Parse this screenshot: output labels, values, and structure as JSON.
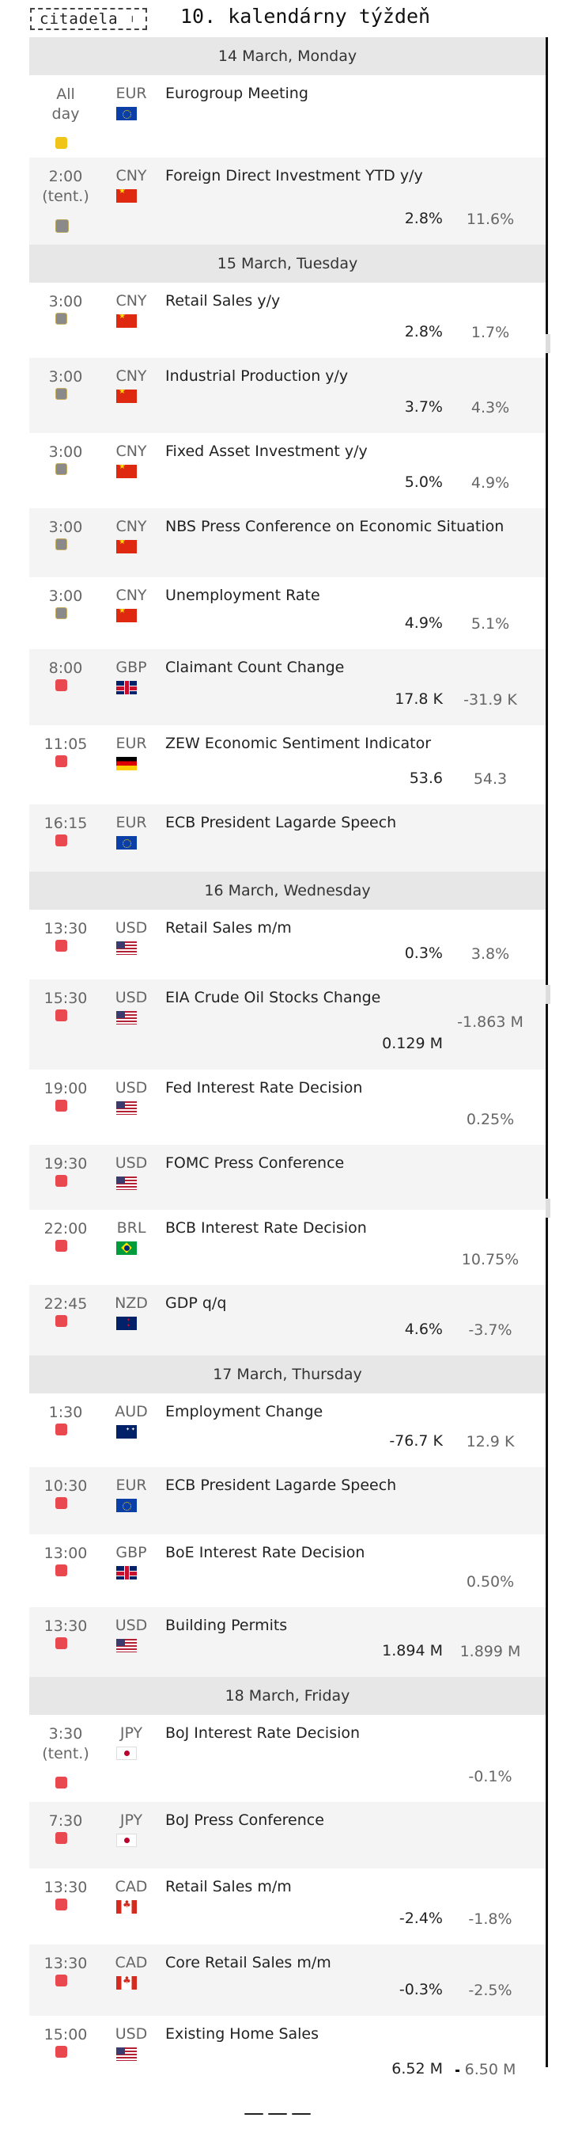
{
  "header": {
    "logo_text": "citadela",
    "logo_marks": "╷\n╵",
    "week_title": "10. kalendárny týždeň"
  },
  "colors": {
    "high": "#e8484e",
    "medium": "#8a8a8a",
    "holiday": "#f0c419",
    "header_bg": "#e7e7e7"
  },
  "days": [
    {
      "label": "14 March, Monday",
      "events": [
        {
          "time": "All day",
          "currency": "EUR",
          "flag": "f-eu",
          "name": "Eurogroup Meeting",
          "actual": "",
          "previous": "",
          "importance": "low",
          "h": 104
        },
        {
          "time": "2:00 (tent.)",
          "currency": "CNY",
          "flag": "f-cn",
          "name": "Foreign Direct Investment YTD y/y",
          "actual": "2.8%",
          "previous": "11.6%",
          "importance": "grey",
          "h": 110
        }
      ]
    },
    {
      "label": "15 March, Tuesday",
      "events": [
        {
          "time": "3:00",
          "currency": "CNY",
          "flag": "f-cn",
          "name": "Retail Sales y/y",
          "actual": "2.8%",
          "previous": "1.7%",
          "importance": "mid",
          "h": 95
        },
        {
          "time": "3:00",
          "currency": "CNY",
          "flag": "f-cn",
          "name": "Industrial Production y/y",
          "actual": "3.7%",
          "previous": "4.3%",
          "importance": "mid",
          "h": 95
        },
        {
          "time": "3:00",
          "currency": "CNY",
          "flag": "f-cn",
          "name": "Fixed Asset Investment y/y",
          "actual": "5.0%",
          "previous": "4.9%",
          "importance": "mid",
          "h": 95
        },
        {
          "time": "3:00",
          "currency": "CNY",
          "flag": "f-cn",
          "name": "NBS Press Conference on Economic Situation",
          "actual": "",
          "previous": "",
          "importance": "mid",
          "h": 87
        },
        {
          "time": "3:00",
          "currency": "CNY",
          "flag": "f-cn",
          "name": "Unemployment Rate",
          "actual": "4.9%",
          "previous": "5.1%",
          "importance": "mid",
          "h": 91
        },
        {
          "time": "8:00",
          "currency": "GBP",
          "flag": "f-gb",
          "name": "Claimant Count Change",
          "actual": "17.8 K",
          "previous": "-31.9 K",
          "importance": "high",
          "h": 96
        },
        {
          "time": "11:05",
          "currency": "EUR",
          "flag": "f-de",
          "name": "ZEW Economic Sentiment Indicator",
          "actual": "53.6",
          "previous": "54.3",
          "importance": "high",
          "h": 100
        },
        {
          "time": "16:15",
          "currency": "EUR",
          "flag": "f-eu",
          "name": "ECB President Lagarde Speech",
          "actual": "",
          "previous": "",
          "importance": "high",
          "h": 85
        }
      ]
    },
    {
      "label": "16 March, Wednesday",
      "events": [
        {
          "time": "13:30",
          "currency": "USD",
          "flag": "f-us",
          "name": "Retail Sales m/m",
          "actual": "0.3%",
          "previous": "3.8%",
          "importance": "high",
          "h": 88
        },
        {
          "time": "15:30",
          "currency": "USD",
          "flag": "f-us",
          "name": "EIA Crude Oil Stocks Change",
          "actual": "0.129 M",
          "previous": "-1.863 M",
          "importance": "high",
          "h": 114
        },
        {
          "time": "19:00",
          "currency": "USD",
          "flag": "f-us",
          "name": "Fed Interest Rate Decision",
          "actual": "",
          "previous": "0.25%",
          "importance": "high",
          "h": 95
        },
        {
          "time": "19:30",
          "currency": "USD",
          "flag": "f-us",
          "name": "FOMC Press Conference",
          "actual": "",
          "previous": "",
          "importance": "high",
          "h": 82
        },
        {
          "time": "22:00",
          "currency": "BRL",
          "flag": "f-br",
          "name": "BCB Interest Rate Decision",
          "actual": "",
          "previous": "10.75%",
          "importance": "high",
          "h": 95
        },
        {
          "time": "22:45",
          "currency": "NZD",
          "flag": "f-nz",
          "name": "GDP q/q",
          "actual": "4.6%",
          "previous": "-3.7%",
          "importance": "high",
          "h": 89
        }
      ]
    },
    {
      "label": "17 March, Thursday",
      "events": [
        {
          "time": "1:30",
          "currency": "AUD",
          "flag": "f-au",
          "name": "Employment Change",
          "actual": "-76.7 K",
          "previous": "12.9 K",
          "importance": "high",
          "h": 93
        },
        {
          "time": "10:30",
          "currency": "EUR",
          "flag": "f-eu",
          "name": "ECB President Lagarde Speech",
          "actual": "",
          "previous": "",
          "importance": "high",
          "h": 85
        },
        {
          "time": "13:00",
          "currency": "GBP",
          "flag": "f-gb",
          "name": "BoE Interest Rate Decision",
          "actual": "",
          "previous": "0.50%",
          "importance": "high",
          "h": 92
        },
        {
          "time": "13:30",
          "currency": "USD",
          "flag": "f-us",
          "name": "Building Permits",
          "actual": "1.894 M",
          "previous": "1.899 M",
          "importance": "high",
          "h": 88
        }
      ]
    },
    {
      "label": "18 March, Friday",
      "events": [
        {
          "time": "3:30 (tent.)",
          "currency": "JPY",
          "flag": "f-jp",
          "name": "BoJ Interest Rate Decision",
          "actual": "",
          "previous": "-0.1%",
          "importance": "high",
          "h": 110
        },
        {
          "time": "7:30",
          "currency": "JPY",
          "flag": "f-jp",
          "name": "BoJ Press Conference",
          "actual": "",
          "previous": "",
          "importance": "high",
          "h": 84
        },
        {
          "time": "13:30",
          "currency": "CAD",
          "flag": "f-ca",
          "name": "Retail Sales m/m",
          "actual": "-2.4%",
          "previous": "-1.8%",
          "importance": "high",
          "h": 96
        },
        {
          "time": "13:30",
          "currency": "CAD",
          "flag": "f-ca",
          "name": "Core Retail Sales m/m",
          "actual": "-0.3%",
          "previous": "-2.5%",
          "importance": "high",
          "h": 90
        },
        {
          "time": "15:00",
          "currency": "USD",
          "flag": "f-us",
          "name": "Existing Home Sales",
          "actual": "6.52 M",
          "previous": "6.50 M",
          "importance": "high",
          "h": 100
        }
      ]
    }
  ],
  "footer": {
    "dash": "———"
  }
}
